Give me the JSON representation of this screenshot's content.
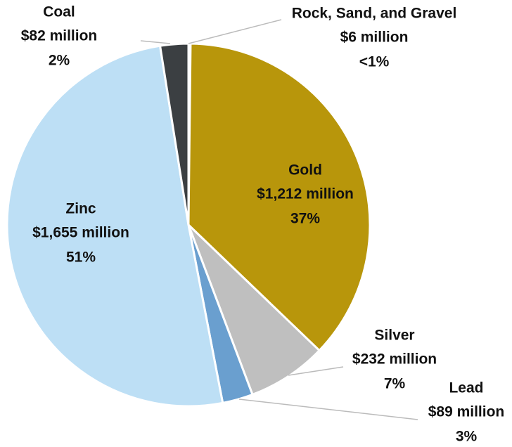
{
  "chart_data": {
    "type": "pie",
    "categories": [
      "Rock, Sand, and Gravel",
      "Gold",
      "Silver",
      "Lead",
      "Zinc",
      "Coal"
    ],
    "values": [
      6,
      1212,
      232,
      89,
      1655,
      82
    ],
    "value_labels": [
      "$6 million",
      "$1,212 million",
      "$232 million",
      "$89 million",
      "$1,655 million",
      "$82 million"
    ],
    "percent_labels": [
      "<1%",
      "37%",
      "7%",
      "3%",
      "51%",
      "2%"
    ],
    "colors": [
      "#4a4e52",
      "#b8960b",
      "#bfbfbf",
      "#6a9fcf",
      "#bddff5",
      "#3b3f42"
    ]
  }
}
